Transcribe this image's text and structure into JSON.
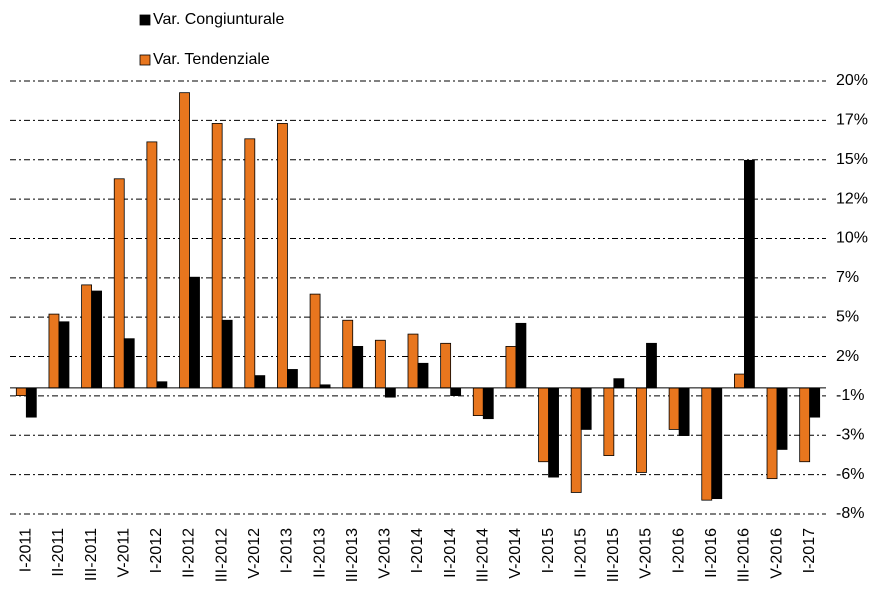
{
  "chart_data": {
    "type": "bar",
    "categories": [
      "I-2011",
      "II-2011",
      "III-2011",
      "V-2011",
      "I-2012",
      "II-2012",
      "III-2012",
      "V-2012",
      "I-2013",
      "II-2013",
      "III-2013",
      "V-2013",
      "I-2014",
      "II-2014",
      "III-2014",
      "V-2014",
      "I-2015",
      "II-2015",
      "III-2015",
      "V-2015",
      "I-2016",
      "II-2016",
      "III-2016",
      "V-2016",
      "I-2017"
    ],
    "series": [
      {
        "name": "Var. Tendenziale",
        "color": "#e8761e",
        "values": [
          -0.5,
          4.8,
          6.7,
          13.6,
          16.0,
          19.2,
          17.2,
          16.2,
          17.2,
          6.1,
          4.4,
          3.1,
          3.5,
          2.9,
          -1.8,
          2.7,
          -4.8,
          -6.8,
          -4.4,
          -5.5,
          -2.7,
          -7.3,
          0.9,
          -5.9,
          -4.8
        ]
      },
      {
        "name": "Var. Congiunturale",
        "color": "#000000",
        "values": [
          -1.9,
          4.3,
          6.3,
          3.2,
          0.4,
          7.2,
          4.4,
          0.8,
          1.2,
          0.2,
          2.7,
          -0.6,
          1.6,
          -0.5,
          -2.0,
          4.2,
          -5.8,
          -2.7,
          0.6,
          2.9,
          -3.1,
          -7.2,
          14.8,
          -4.0,
          -1.9
        ]
      }
    ],
    "ylim": [
      -8.2,
      19.96
    ],
    "yticks": [
      {
        "value": -8.2,
        "label": "-8%"
      },
      {
        "value": -5.64,
        "label": "-6%"
      },
      {
        "value": -3.08,
        "label": "-3%"
      },
      {
        "value": -0.52,
        "label": "-1%"
      },
      {
        "value": 2.04,
        "label": "2%"
      },
      {
        "value": 4.6,
        "label": "5%"
      },
      {
        "value": 7.16,
        "label": "7%"
      },
      {
        "value": 9.72,
        "label": "10%"
      },
      {
        "value": 12.28,
        "label": "12%"
      },
      {
        "value": 14.84,
        "label": "15%"
      },
      {
        "value": 17.4,
        "label": "17%"
      },
      {
        "value": 19.96,
        "label": "20%"
      }
    ],
    "grid": true
  }
}
